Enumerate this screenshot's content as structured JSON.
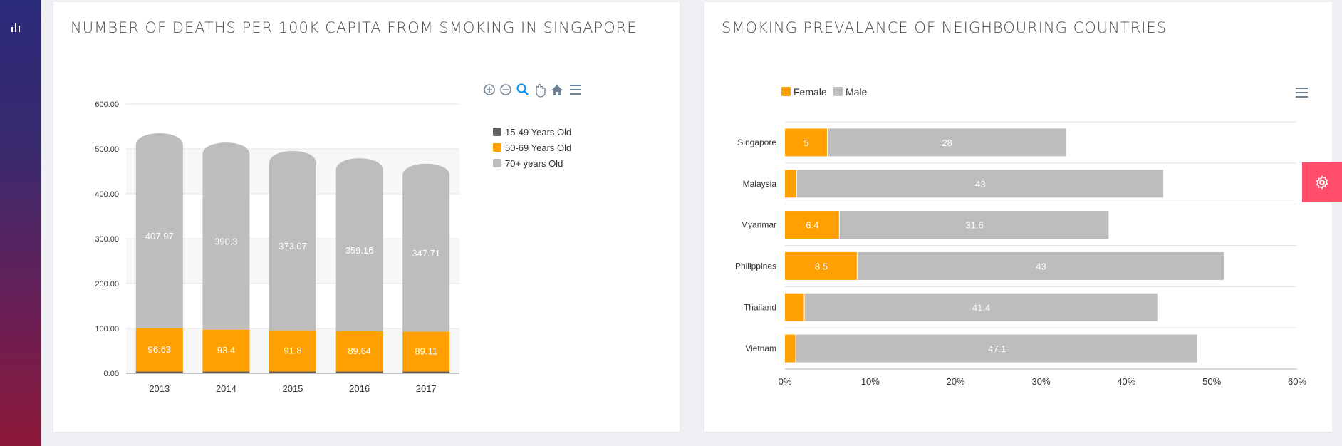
{
  "colors": {
    "accent": "#ff4d6a",
    "orange": "#ffa000",
    "gray": "#bdbdbd",
    "dark": "#616161"
  },
  "icons": {
    "sidebar": "bar-chart-icon",
    "toolbar": [
      "zoom-in-icon",
      "zoom-out-icon",
      "selection-zoom-icon",
      "pan-icon",
      "home-icon",
      "menu-icon"
    ],
    "floating": "gear-icon"
  },
  "left_card": {
    "title": "NUMBER OF DEATHS PER 100K CAPITA FROM SMOKING IN SINGAPORE"
  },
  "right_card": {
    "title": "SMOKING PREVALANCE OF NEIGHBOURING COUNTRIES"
  },
  "chart_data": [
    {
      "type": "bar",
      "stacked": true,
      "title": "",
      "categories": [
        "2013",
        "2014",
        "2015",
        "2016",
        "2017"
      ],
      "ylim": [
        0,
        600
      ],
      "yticks": [
        "0.00",
        "100.00",
        "200.00",
        "300.00",
        "400.00",
        "500.00",
        "600.00"
      ],
      "series": [
        {
          "name": "15-49 Years Old",
          "color": "#616161",
          "values": [
            4,
            4,
            4,
            4,
            4
          ]
        },
        {
          "name": "50-69 Years Old",
          "color": "#ffa000",
          "values": [
            96.63,
            93.4,
            91.8,
            89.64,
            89.11
          ],
          "labels": [
            "96.63",
            "93.4",
            "91.8",
            "89.64",
            "89.11"
          ]
        },
        {
          "name": "70+ years Old",
          "color": "#bdbdbd",
          "values": [
            407.97,
            390.3,
            373.07,
            359.16,
            347.71
          ],
          "labels": [
            "407.97",
            "390.3",
            "373.07",
            "359.16",
            "347.71"
          ]
        }
      ],
      "legend": "right",
      "grid": true
    },
    {
      "type": "bar",
      "orientation": "horizontal",
      "stacked": true,
      "title": "",
      "categories": [
        "Singapore",
        "Malaysia",
        "Myanmar",
        "Philippines",
        "Thailand",
        "Vietnam"
      ],
      "xlim": [
        0,
        60
      ],
      "xticks": [
        "0%",
        "10%",
        "20%",
        "30%",
        "40%",
        "50%",
        "60%"
      ],
      "series": [
        {
          "name": "Female",
          "color": "#ffa000",
          "values": [
            5,
            1.4,
            6.4,
            8.5,
            2.3,
            1.3
          ],
          "labels": [
            "5",
            "",
            "6.4",
            "8.5",
            "",
            ""
          ]
        },
        {
          "name": "Male",
          "color": "#bdbdbd",
          "values": [
            28,
            43,
            31.6,
            43,
            41.4,
            47.1
          ],
          "labels": [
            "28",
            "43",
            "31.6",
            "43",
            "41.4",
            "47.1"
          ]
        }
      ],
      "legend": "top-left",
      "grid": true
    }
  ]
}
